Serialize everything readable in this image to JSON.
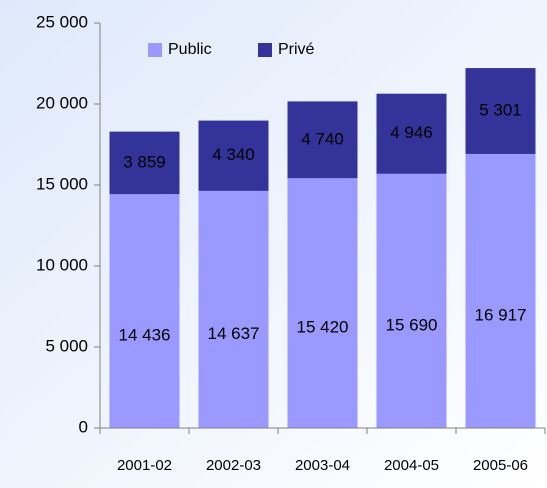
{
  "chart_data": {
    "type": "stacked_bar",
    "categories": [
      "2001-02",
      "2002-03",
      "2003-04",
      "2004-05",
      "2005-06"
    ],
    "series": [
      {
        "name": "Public",
        "color": "#9999ff",
        "values": [
          14436,
          14637,
          15420,
          15690,
          16917
        ],
        "value_labels": [
          "14 436",
          "14 637",
          "15 420",
          "15 690",
          "16 917"
        ]
      },
      {
        "name": "Privé",
        "color": "#333399",
        "values": [
          3859,
          4340,
          4740,
          4946,
          5301
        ],
        "value_labels": [
          "3 859",
          "4 340",
          "4 740",
          "4 946",
          "5 301"
        ]
      }
    ],
    "ylim": [
      0,
      25000
    ],
    "yticks": [
      {
        "value": 0,
        "label": "0"
      },
      {
        "value": 5000,
        "label": "5 000"
      },
      {
        "value": 10000,
        "label": "10 000"
      },
      {
        "value": 15000,
        "label": "15 000"
      },
      {
        "value": 20000,
        "label": "20 000"
      },
      {
        "value": 25000,
        "label": "25 000"
      }
    ],
    "legend": "top"
  }
}
